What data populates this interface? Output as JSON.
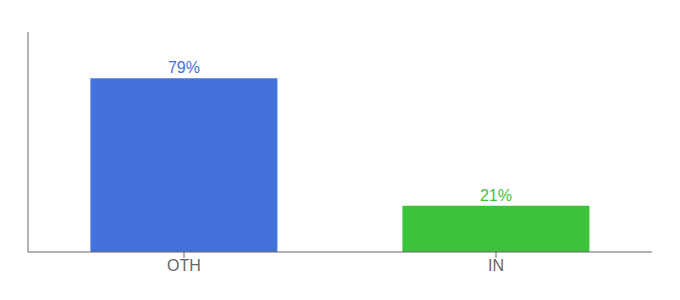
{
  "chart_data": {
    "type": "bar",
    "categories": [
      "OTH",
      "IN"
    ],
    "values": [
      79,
      21
    ],
    "colors": [
      "#4472db",
      "#3bc43b"
    ],
    "value_labels": [
      "79%",
      "21%"
    ],
    "data_labels": true,
    "ylim": [
      0,
      100
    ],
    "tick_labels": "x"
  }
}
